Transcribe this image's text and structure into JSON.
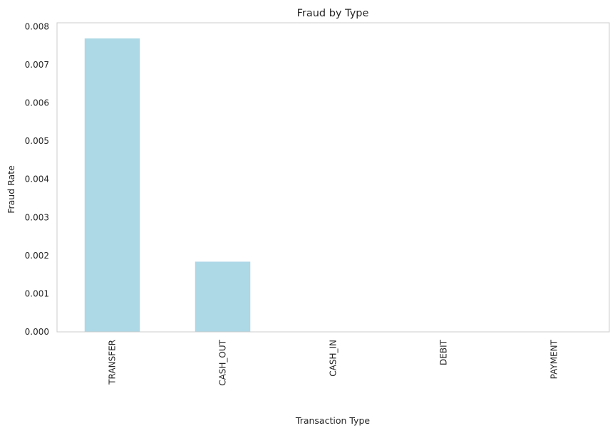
{
  "chart_data": {
    "type": "bar",
    "title": "Fraud by Type",
    "xlabel": "Transaction Type",
    "ylabel": "Fraud Rate",
    "categories": [
      "TRANSFER",
      "CASH_OUT",
      "CASH_IN",
      "DEBIT",
      "PAYMENT"
    ],
    "values": [
      0.00769,
      0.00184,
      0,
      0,
      0
    ],
    "ylim": [
      0,
      0.0081
    ],
    "yticks": [
      "0.000",
      "0.001",
      "0.002",
      "0.003",
      "0.004",
      "0.005",
      "0.006",
      "0.007",
      "0.008"
    ],
    "ytick_values": [
      0,
      0.001,
      0.002,
      0.003,
      0.004,
      0.005,
      0.006,
      0.007,
      0.008
    ],
    "grid": false,
    "bar_color": "#add8e6",
    "frame_color": "#cccccc"
  }
}
